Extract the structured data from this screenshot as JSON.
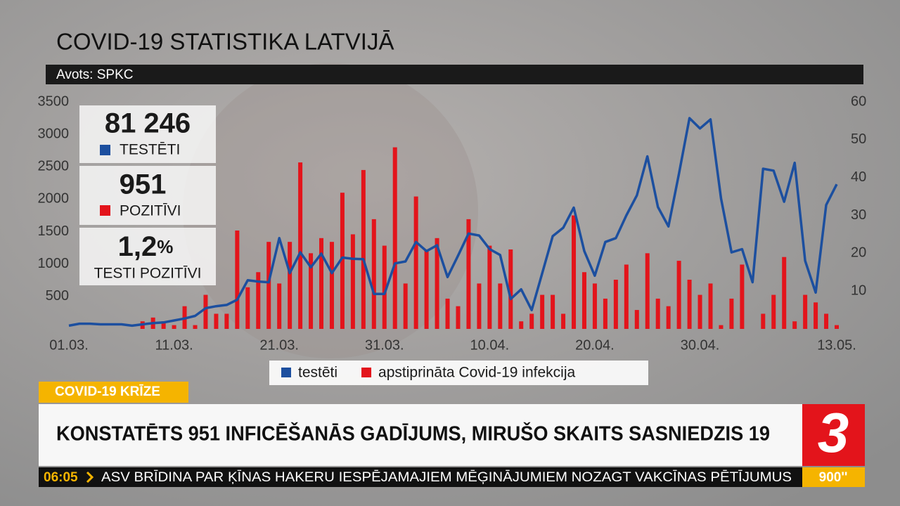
{
  "header": {
    "title": "COVID-19 STATISTIKA LATVIJĀ",
    "source": "Avots: SPKC"
  },
  "stats": {
    "tested_value": "81 246",
    "tested_label": "TESTĒTI",
    "positive_value": "951",
    "positive_label": "POZITĪVI",
    "share_value": "1,2",
    "share_unit": "%",
    "share_label": "TESTI POZITĪVI"
  },
  "chart_data": {
    "type": "bar",
    "legend": "bottom",
    "grid": false,
    "categories": [
      "01.03.",
      null,
      null,
      null,
      null,
      null,
      null,
      null,
      null,
      null,
      "11.03.",
      null,
      null,
      null,
      null,
      null,
      null,
      null,
      null,
      null,
      "21.03.",
      null,
      null,
      null,
      null,
      null,
      null,
      null,
      null,
      null,
      "31.03.",
      null,
      null,
      null,
      null,
      null,
      null,
      null,
      null,
      null,
      "10.04.",
      null,
      null,
      null,
      null,
      null,
      null,
      null,
      null,
      null,
      "20.04.",
      null,
      null,
      null,
      null,
      null,
      null,
      null,
      null,
      null,
      "30.04.",
      null,
      null,
      null,
      null,
      null,
      null,
      null,
      null,
      null,
      null,
      null,
      null,
      "13.05."
    ],
    "ylim": [
      0,
      3500
    ],
    "yticks": [
      500,
      1000,
      1500,
      2000,
      2500,
      3000,
      3500
    ],
    "y2lim": [
      0,
      60
    ],
    "y2ticks": [
      10,
      20,
      30,
      40,
      50,
      60
    ],
    "series": [
      {
        "name": "testēti",
        "type": "line",
        "color": "#1c4f9f",
        "values": [
          50,
          80,
          80,
          70,
          70,
          70,
          50,
          70,
          90,
          100,
          130,
          160,
          200,
          320,
          350,
          370,
          450,
          750,
          730,
          720,
          1400,
          860,
          1180,
          950,
          1160,
          860,
          1100,
          1080,
          1075,
          540,
          540,
          1010,
          1040,
          1340,
          1200,
          1290,
          800,
          1130,
          1470,
          1440,
          1230,
          1140,
          460,
          610,
          290,
          860,
          1430,
          1560,
          1870,
          1200,
          820,
          1340,
          1400,
          1750,
          2060,
          2660,
          1880,
          1580,
          2390,
          3250,
          3090,
          3230,
          2010,
          1180,
          1230,
          720,
          2470,
          2440,
          1960,
          2560,
          1050,
          560,
          1910,
          2230
        ]
      },
      {
        "name": "apstiprināta Covid-19 infekcija",
        "type": "bar",
        "axis": "y2",
        "color": "#e3141b",
        "values": [
          0,
          0,
          0,
          0,
          0,
          0,
          0,
          2,
          3,
          2,
          1,
          6,
          1,
          9,
          4,
          4,
          26,
          11,
          15,
          23,
          12,
          23,
          44,
          20,
          24,
          23,
          36,
          25,
          42,
          29,
          22,
          48,
          12,
          35,
          21,
          24,
          8,
          6,
          29,
          12,
          22,
          12,
          21,
          2,
          4,
          9,
          9,
          4,
          30,
          15,
          12,
          8,
          13,
          17,
          5,
          20,
          8,
          6,
          18,
          13,
          9,
          12,
          1,
          8,
          17,
          0,
          4,
          9,
          19,
          2,
          9,
          7,
          4,
          1
        ]
      }
    ]
  },
  "banner": {
    "tag": "COVID-19 KRĪZE",
    "headline": "KONSTATĒTS 951 INFICĒŠANĀS GADĪJUMS, MIRUŠO SKAITS SASNIEDZIS 19",
    "logo": "3"
  },
  "ticker": {
    "time": "06:05",
    "text": "ASV BRĪDINA PAR ĶĪNAS HAKERU IESPĒJAMAJIEM MĒĢINĀJUMIEM NOZAGT VAKCĪNAS PĒTĪJUMUS",
    "channel_time": "900''"
  }
}
